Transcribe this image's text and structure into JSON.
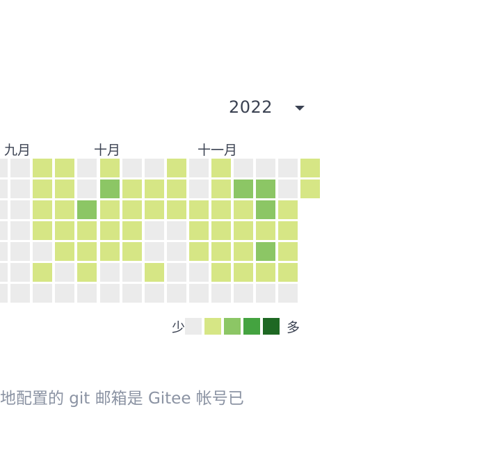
{
  "year_selector": {
    "value": "2022"
  },
  "months": [
    "九月",
    "十月",
    "十一月"
  ],
  "legend": {
    "less": "少",
    "more": "多",
    "colors": [
      "#ebebeb",
      "#d6e685",
      "#8cc665",
      "#44a340",
      "#1e6823"
    ]
  },
  "contribution_levels": [
    [
      0,
      0,
      0,
      0,
      0,
      0,
      0
    ],
    [
      0,
      0,
      0,
      0,
      0,
      0,
      0
    ],
    [
      1,
      1,
      1,
      1,
      0,
      1,
      0
    ],
    [
      1,
      1,
      1,
      1,
      1,
      0,
      0
    ],
    [
      0,
      0,
      2,
      1,
      1,
      1,
      0
    ],
    [
      1,
      2,
      1,
      1,
      1,
      0,
      0
    ],
    [
      0,
      1,
      1,
      1,
      1,
      0,
      0
    ],
    [
      0,
      1,
      1,
      0,
      0,
      1,
      0
    ],
    [
      1,
      1,
      1,
      0,
      0,
      0,
      0
    ],
    [
      0,
      0,
      1,
      1,
      1,
      0,
      0
    ],
    [
      1,
      1,
      1,
      1,
      1,
      1,
      0
    ],
    [
      0,
      2,
      1,
      1,
      1,
      1,
      0
    ],
    [
      0,
      2,
      2,
      1,
      2,
      1,
      0
    ],
    [
      0,
      0,
      1,
      1,
      1,
      1,
      0
    ],
    [
      1,
      1
    ]
  ],
  "footer_note": "地配置的 git 邮箱是 Gitee 帐号已"
}
